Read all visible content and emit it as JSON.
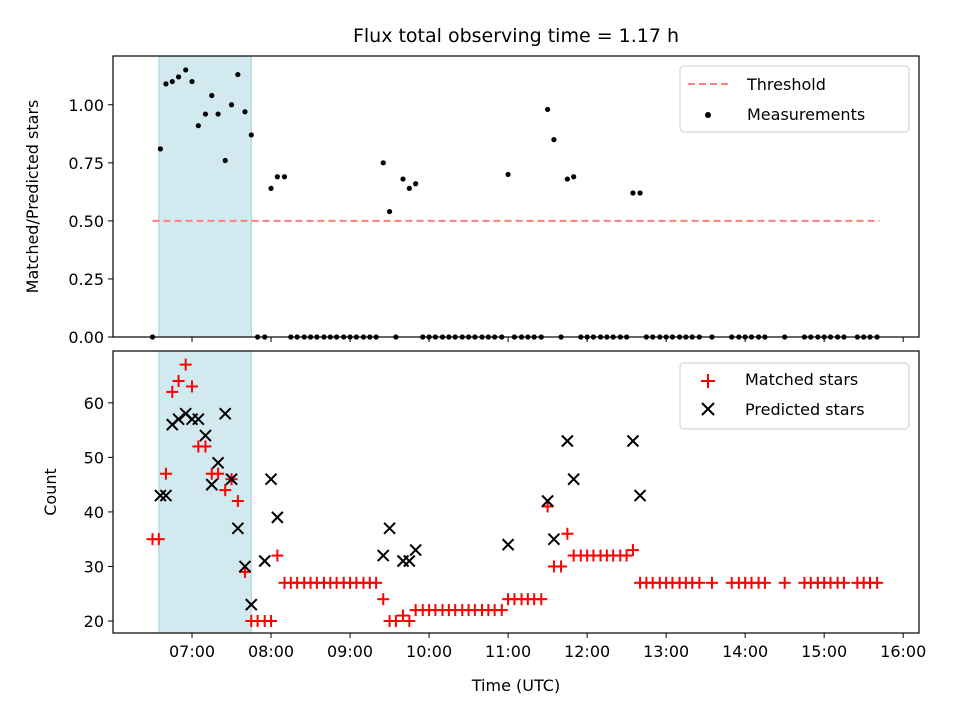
{
  "chart_data": [
    {
      "type": "scatter",
      "title": "Flux total observing time = 1.17 h",
      "xlabel": "",
      "ylabel": "Matched/Predicted stars",
      "xlim_hours": [
        6.0,
        16.2
      ],
      "ylim": [
        0.0,
        1.21
      ],
      "yticks": [
        0.0,
        0.25,
        0.5,
        0.75,
        1.0
      ],
      "ytick_labels": [
        "0.00",
        "0.25",
        "0.50",
        "0.75",
        "1.00"
      ],
      "shaded_span_hours": [
        6.58,
        7.75
      ],
      "shade_color": "#d3e9f0",
      "legend_position": "upper right",
      "threshold": {
        "name": "Threshold",
        "y": 0.5,
        "x_start": 6.5,
        "x_end": 15.7,
        "color": "#ff7f7f",
        "style": "dashed"
      },
      "series": [
        {
          "name": "Measurements",
          "marker": "dot",
          "color": "#000000",
          "x": [
            6.5,
            6.6,
            6.67,
            6.75,
            6.83,
            6.92,
            7.0,
            7.08,
            7.17,
            7.25,
            7.33,
            7.42,
            7.5,
            7.58,
            7.67,
            7.75,
            7.83,
            7.92,
            8.0,
            8.08,
            8.17,
            8.25,
            8.33,
            8.42,
            8.5,
            8.58,
            8.67,
            8.75,
            8.83,
            8.92,
            9.0,
            9.08,
            9.17,
            9.25,
            9.33,
            9.42,
            9.5,
            9.58,
            9.67,
            9.75,
            9.83,
            9.92,
            10.0,
            10.08,
            10.17,
            10.25,
            10.33,
            10.42,
            10.5,
            10.58,
            10.67,
            10.75,
            10.83,
            10.92,
            11.0,
            11.08,
            11.17,
            11.25,
            11.33,
            11.42,
            11.5,
            11.58,
            11.67,
            11.75,
            11.83,
            11.92,
            12.0,
            12.08,
            12.17,
            12.25,
            12.33,
            12.42,
            12.5,
            12.58,
            12.67,
            12.75,
            12.83,
            12.92,
            13.0,
            13.08,
            13.17,
            13.25,
            13.33,
            13.42,
            13.58,
            13.83,
            13.92,
            14.0,
            14.08,
            14.17,
            14.25,
            14.5,
            14.75,
            14.83,
            14.92,
            15.0,
            15.08,
            15.17,
            15.25,
            15.42,
            15.5,
            15.58,
            15.67
          ],
          "y": [
            0.0,
            0.81,
            1.09,
            1.1,
            1.12,
            1.15,
            1.1,
            0.91,
            0.96,
            1.04,
            0.96,
            0.76,
            1.0,
            1.13,
            0.97,
            0.87,
            0.0,
            0.0,
            0.64,
            0.69,
            0.69,
            0.0,
            0.0,
            0.0,
            0.0,
            0.0,
            0.0,
            0.0,
            0.0,
            0.0,
            0.0,
            0.0,
            0.0,
            0.0,
            0.0,
            0.75,
            0.54,
            0.0,
            0.68,
            0.64,
            0.66,
            0.0,
            0.0,
            0.0,
            0.0,
            0.0,
            0.0,
            0.0,
            0.0,
            0.0,
            0.0,
            0.0,
            0.0,
            0.0,
            0.7,
            0.0,
            0.0,
            0.0,
            0.0,
            0.0,
            0.98,
            0.85,
            0.0,
            0.68,
            0.69,
            0.0,
            0.0,
            0.0,
            0.0,
            0.0,
            0.0,
            0.0,
            0.0,
            0.62,
            0.62,
            0.0,
            0.0,
            0.0,
            0.0,
            0.0,
            0.0,
            0.0,
            0.0,
            0.0,
            0.0,
            0.0,
            0.0,
            0.0,
            0.0,
            0.0,
            0.0,
            0.0,
            0.0,
            0.0,
            0.0,
            0.0,
            0.0,
            0.0,
            0.0,
            0.0,
            0.0,
            0.0,
            0.0
          ]
        }
      ]
    },
    {
      "type": "scatter",
      "title": "",
      "xlabel": "Time (UTC)",
      "ylabel": "Count",
      "xlim_hours": [
        6.0,
        16.2
      ],
      "ylim": [
        17.8,
        69.5
      ],
      "yticks": [
        20,
        30,
        40,
        50,
        60
      ],
      "ytick_labels": [
        "20",
        "30",
        "40",
        "50",
        "60"
      ],
      "xticks_hours": [
        7,
        8,
        9,
        10,
        11,
        12,
        13,
        14,
        15,
        16
      ],
      "xtick_labels": [
        "07:00",
        "08:00",
        "09:00",
        "10:00",
        "11:00",
        "12:00",
        "13:00",
        "14:00",
        "15:00",
        "16:00"
      ],
      "shaded_span_hours": [
        6.58,
        7.75
      ],
      "shade_color": "#d3e9f0",
      "legend_position": "upper right",
      "series": [
        {
          "name": "Matched stars",
          "marker": "plus",
          "color": "#ff0000",
          "x": [
            6.5,
            6.58,
            6.67,
            6.75,
            6.83,
            6.92,
            7.0,
            7.08,
            7.17,
            7.25,
            7.33,
            7.42,
            7.5,
            7.58,
            7.67,
            7.75,
            7.83,
            7.92,
            8.0,
            8.08,
            8.17,
            8.25,
            8.33,
            8.42,
            8.5,
            8.58,
            8.67,
            8.75,
            8.83,
            8.92,
            9.0,
            9.08,
            9.17,
            9.25,
            9.33,
            9.42,
            9.5,
            9.58,
            9.67,
            9.75,
            9.83,
            9.92,
            10.0,
            10.08,
            10.17,
            10.25,
            10.33,
            10.42,
            10.5,
            10.58,
            10.67,
            10.75,
            10.83,
            10.92,
            11.0,
            11.08,
            11.17,
            11.25,
            11.33,
            11.42,
            11.5,
            11.58,
            11.67,
            11.75,
            11.83,
            11.92,
            12.0,
            12.08,
            12.17,
            12.25,
            12.33,
            12.42,
            12.5,
            12.58,
            12.67,
            12.75,
            12.83,
            12.92,
            13.0,
            13.08,
            13.17,
            13.25,
            13.33,
            13.42,
            13.58,
            13.83,
            13.92,
            14.0,
            14.08,
            14.17,
            14.25,
            14.5,
            14.75,
            14.83,
            14.92,
            15.0,
            15.08,
            15.17,
            15.25,
            15.42,
            15.5,
            15.58,
            15.67
          ],
          "y": [
            35,
            35,
            47,
            62,
            64,
            67,
            63,
            52,
            52,
            47,
            47,
            44,
            46,
            42,
            29,
            20,
            20,
            20,
            20,
            32,
            27,
            27,
            27,
            27,
            27,
            27,
            27,
            27,
            27,
            27,
            27,
            27,
            27,
            27,
            27,
            24,
            20,
            20,
            21,
            20,
            22,
            22,
            22,
            22,
            22,
            22,
            22,
            22,
            22,
            22,
            22,
            22,
            22,
            22,
            24,
            24,
            24,
            24,
            24,
            24,
            41,
            30,
            30,
            36,
            32,
            32,
            32,
            32,
            32,
            32,
            32,
            32,
            32,
            33,
            27,
            27,
            27,
            27,
            27,
            27,
            27,
            27,
            27,
            27,
            27,
            27,
            27,
            27,
            27,
            27,
            27,
            27,
            27,
            27,
            27,
            27,
            27,
            27,
            27,
            27,
            27,
            27,
            27
          ]
        },
        {
          "name": "Predicted stars",
          "marker": "x",
          "color": "#000000",
          "x": [
            6.6,
            6.67,
            6.75,
            6.83,
            6.92,
            7.0,
            7.08,
            7.17,
            7.25,
            7.33,
            7.42,
            7.5,
            7.58,
            7.67,
            7.75,
            7.92,
            8.0,
            8.08,
            9.42,
            9.5,
            9.67,
            9.75,
            9.83,
            11.0,
            11.5,
            11.58,
            11.75,
            11.83,
            12.58,
            12.67
          ],
          "y": [
            43,
            43,
            56,
            57,
            58,
            57,
            57,
            54,
            45,
            49,
            58,
            46,
            37,
            30,
            23,
            31,
            46,
            39,
            32,
            37,
            31,
            31,
            33,
            34,
            42,
            35,
            53,
            46,
            53,
            43
          ]
        }
      ]
    }
  ]
}
